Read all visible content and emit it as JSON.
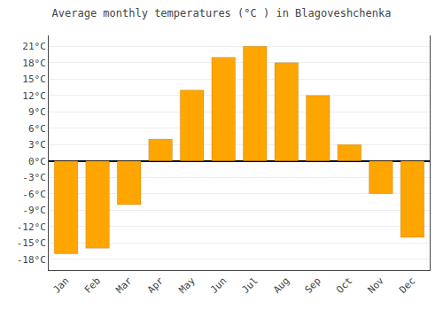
{
  "chart_data": {
    "type": "bar",
    "title": "Average monthly temperatures (°C ) in Blagoveshchenka",
    "categories": [
      "Jan",
      "Feb",
      "Mar",
      "Apr",
      "May",
      "Jun",
      "Jul",
      "Aug",
      "Sep",
      "Oct",
      "Nov",
      "Dec"
    ],
    "values": [
      -17,
      -16,
      -8,
      4,
      13,
      19,
      21,
      18,
      12,
      3,
      -6,
      -14
    ],
    "color": "#FFA500",
    "ylim": [
      -20,
      23
    ],
    "yticks": [
      {
        "value": -18,
        "label": "-18°C"
      },
      {
        "value": -15,
        "label": "-15°C"
      },
      {
        "value": -12,
        "label": "-12°C"
      },
      {
        "value": -9,
        "label": "-9°C"
      },
      {
        "value": -6,
        "label": "-6°C"
      },
      {
        "value": -3,
        "label": "-3°C"
      },
      {
        "value": 0,
        "label": "0°C"
      },
      {
        "value": 3,
        "label": "3°C"
      },
      {
        "value": 6,
        "label": "6°C"
      },
      {
        "value": 9,
        "label": "9°C"
      },
      {
        "value": 12,
        "label": "12°C"
      },
      {
        "value": 15,
        "label": "15°C"
      },
      {
        "value": 18,
        "label": "18°C"
      },
      {
        "value": 21,
        "label": "21°C"
      }
    ],
    "grid": true
  }
}
